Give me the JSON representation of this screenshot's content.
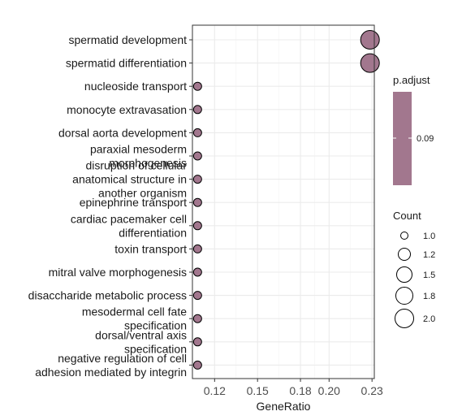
{
  "chart_data": {
    "type": "scatter",
    "xlabel": "GeneRatio",
    "xlim": [
      0.1045,
      0.2316
    ],
    "xticks": [
      0.12,
      0.15,
      0.18,
      0.2,
      0.23
    ],
    "xtick_labels": [
      "0.12",
      "0.15",
      "0.18",
      "0.20",
      "0.23"
    ],
    "grid": true,
    "point_color": "#a2778e",
    "terms": [
      {
        "label": [
          "spermatid development"
        ],
        "x": 0.2286,
        "count": 2
      },
      {
        "label": [
          "spermatid differentiation"
        ],
        "x": 0.2286,
        "count": 2
      },
      {
        "label": [
          "nucleoside transport"
        ],
        "x": 0.1081,
        "count": 1
      },
      {
        "label": [
          "monocyte extravasation"
        ],
        "x": 0.1081,
        "count": 1
      },
      {
        "label": [
          "dorsal aorta development"
        ],
        "x": 0.1081,
        "count": 1
      },
      {
        "label": [
          "paraxial mesoderm",
          "morphogenesis"
        ],
        "x": 0.1081,
        "count": 1
      },
      {
        "label": [
          "disruption of cellular",
          "anatomical structure in",
          "another organism"
        ],
        "x": 0.1081,
        "count": 1
      },
      {
        "label": [
          "epinephrine transport"
        ],
        "x": 0.1081,
        "count": 1
      },
      {
        "label": [
          "cardiac pacemaker cell",
          "differentiation"
        ],
        "x": 0.1081,
        "count": 1
      },
      {
        "label": [
          "toxin transport"
        ],
        "x": 0.1081,
        "count": 1
      },
      {
        "label": [
          "mitral valve morphogenesis"
        ],
        "x": 0.1081,
        "count": 1
      },
      {
        "label": [
          "disaccharide metabolic process"
        ],
        "x": 0.1081,
        "count": 1
      },
      {
        "label": [
          "mesodermal cell fate",
          "specification"
        ],
        "x": 0.1081,
        "count": 1
      },
      {
        "label": [
          "dorsal/ventral axis",
          "specification"
        ],
        "x": 0.1081,
        "count": 1
      },
      {
        "label": [
          "negative regulation of cell",
          "adhesion mediated by integrin"
        ],
        "x": 0.1081,
        "count": 1
      }
    ],
    "legend": {
      "color_title": "p.adjust",
      "color_ticks": [
        "0.09"
      ],
      "size_title": "Count",
      "size_values": [
        1.0,
        1.2,
        1.5,
        1.8,
        2.0
      ],
      "size_labels": [
        "1.0",
        "1.2",
        "1.5",
        "1.8",
        "2.0"
      ],
      "placement": "right"
    }
  }
}
